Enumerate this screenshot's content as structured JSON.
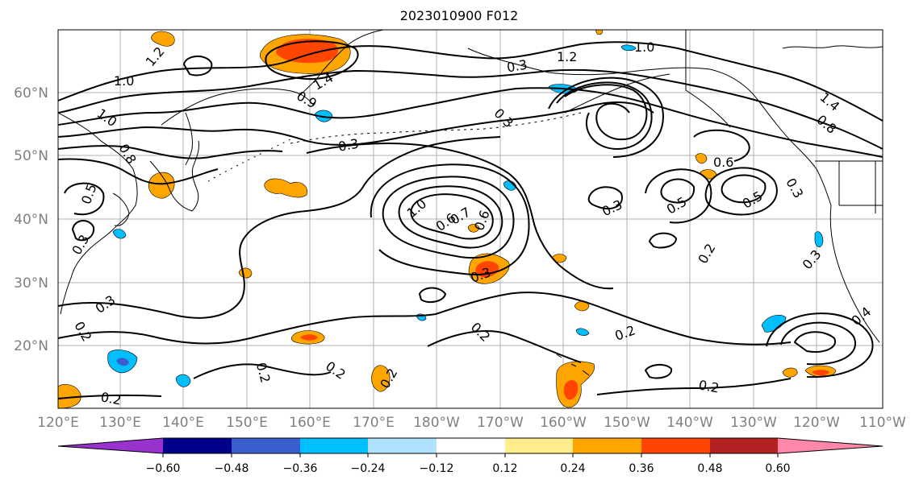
{
  "title": "2023010900 F012",
  "lon_labels": [
    "120°E",
    "130°E",
    "140°E",
    "150°E",
    "160°E",
    "170°E",
    "180°W",
    "170°W",
    "160°W",
    "150°W",
    "140°W",
    "130°W",
    "120°W",
    "110°W"
  ],
  "lat_labels": [
    "60°N",
    "50°N",
    "40°N",
    "30°N",
    "20°N"
  ],
  "colorbar": {
    "ticks": [
      "−0.60",
      "−0.48",
      "−0.36",
      "−0.24",
      "−0.12",
      "0.12",
      "0.24",
      "0.36",
      "0.48",
      "0.60"
    ],
    "colors": [
      "#9932cc",
      "#00008b",
      "#3a5fcd",
      "#00bfff",
      "#b0e2ff",
      "#ffffff",
      "#ffec8b",
      "#ffa500",
      "#ff4500",
      "#b22222",
      "#ff88aa"
    ]
  },
  "contour_labels": [
    "1.2",
    "1.0",
    "1.0",
    "0.8",
    "0.5",
    "0.3",
    "1.4",
    "0.9",
    "1.0",
    "1.2",
    "0.3",
    "1.4",
    "0.8",
    "0.3",
    "0.6",
    "0.5",
    "0.3",
    "0.3",
    "0.6",
    "0.5",
    "0.2",
    "0.3",
    "0.2",
    "0.2",
    "0.2",
    "0.2",
    "0.2",
    "0.2",
    "0.2",
    "0.3",
    "0.3",
    "0.6",
    "0.7",
    "1.0",
    "0.4",
    "0.2",
    "0.3"
  ]
}
